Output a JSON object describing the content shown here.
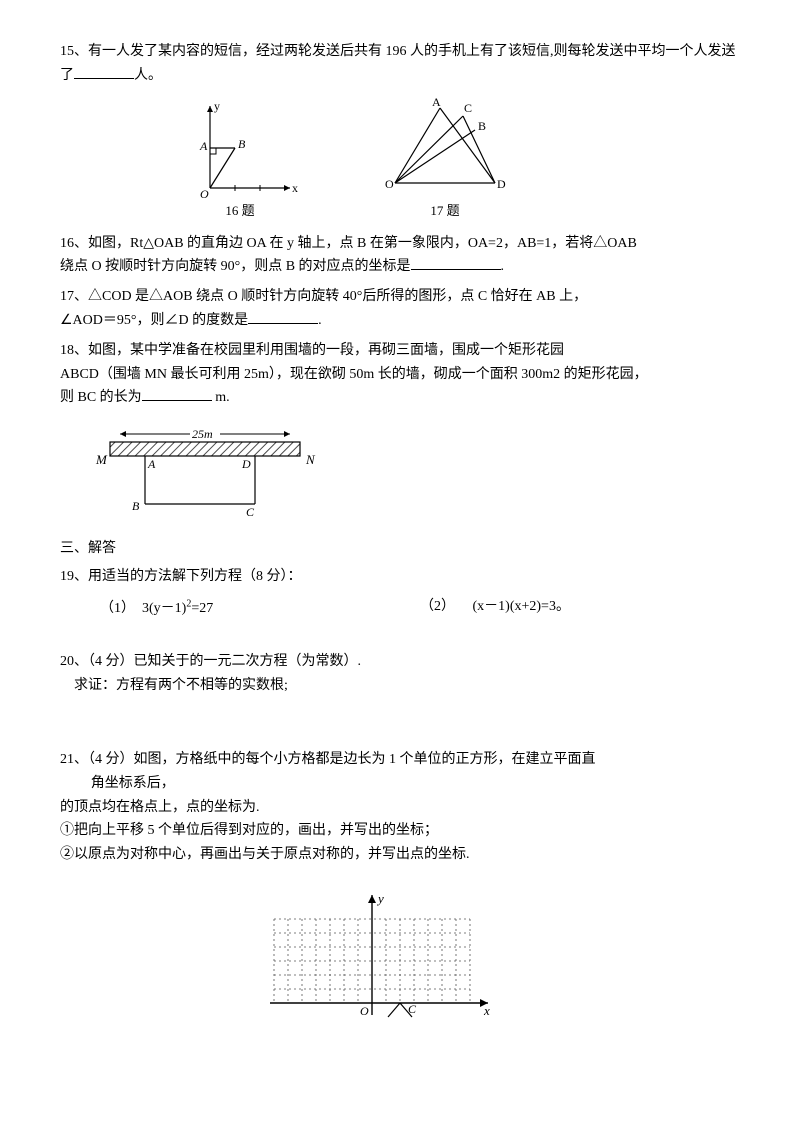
{
  "q15": {
    "text": "15、有一人发了某内容的短信，经过两轮发送后共有 196 人的手机上有了该短信,则每轮发送中平均一个人发送了",
    "suffix": "人。"
  },
  "fig16": {
    "caption": "16 题",
    "labels": {
      "y": "y",
      "x": "x",
      "A": "A",
      "B": "B",
      "O": "O"
    }
  },
  "fig17": {
    "caption": "17 题",
    "labels": {
      "A": "A",
      "B": "B",
      "C": "C",
      "D": "D",
      "O": "O"
    }
  },
  "q16": {
    "line1": "16、如图，Rt△OAB 的直角边 OA 在 y 轴上，点 B 在第一象限内，OA=2，AB=1，若将△OAB",
    "line2": "绕点 O 按顺时针方向旋转 90°，则点 B 的对应点的坐标是",
    "punct": "."
  },
  "q17": {
    "line1": "17、△COD 是△AOB 绕点 O 顺时针方向旋转 40°后所得的图形，点 C 恰好在 AB 上，",
    "line2": "∠AOD＝95°，则∠D 的度数是",
    "punct": "."
  },
  "q18": {
    "line1": "18、如图，某中学准备在校园里利用围墙的一段，再砌三面墙，围成一个矩形花园",
    "line2": "ABCD（围墙 MN 最长可利用 25m），现在欲砌 50m 长的墙，砌成一个面积 300m2 的矩形花园，",
    "line3": "则 BC 的长为",
    "unit": " m."
  },
  "fig18": {
    "labels": {
      "M": "M",
      "N": "N",
      "A": "A",
      "B": "B",
      "C": "C",
      "D": "D",
      "len": "25m"
    }
  },
  "section3": "三、解答",
  "q19": {
    "stem": "19、用适当的方法解下列方程（8 分）：",
    "a_label": "（1）",
    "a_eq": "3(y－1)",
    "a_sup": "2",
    "a_tail": "=27",
    "b_label": "（2）",
    "b_eq": "(x－1)(x+2)=3。"
  },
  "q20": {
    "line1": "20、（4 分）已知关于的一元二次方程（为常数）.",
    "line2": "求证：方程有两个不相等的实数根;"
  },
  "q21": {
    "line1": "21、（4 分）如图，方格纸中的每个小方格都是边长为 1 个单位的正方形，在建立平面直",
    "line1b": "角坐标系后，",
    "line2": "的顶点均在格点上，点的坐标为.",
    "line3": "①把向上平移 5 个单位后得到对应的，画出，并写出的坐标；",
    "line4": "②以原点为对称中心，再画出与关于原点对称的，并写出点的坐标."
  },
  "fig21": {
    "labels": {
      "y": "y",
      "x": "x",
      "O": "O",
      "C": "C"
    },
    "grid": {
      "cols": 14,
      "rows": 6,
      "cell": 14
    }
  },
  "style": {
    "stroke": "#000000",
    "hatch": "#4a4a4a",
    "dashed": "#555555"
  }
}
